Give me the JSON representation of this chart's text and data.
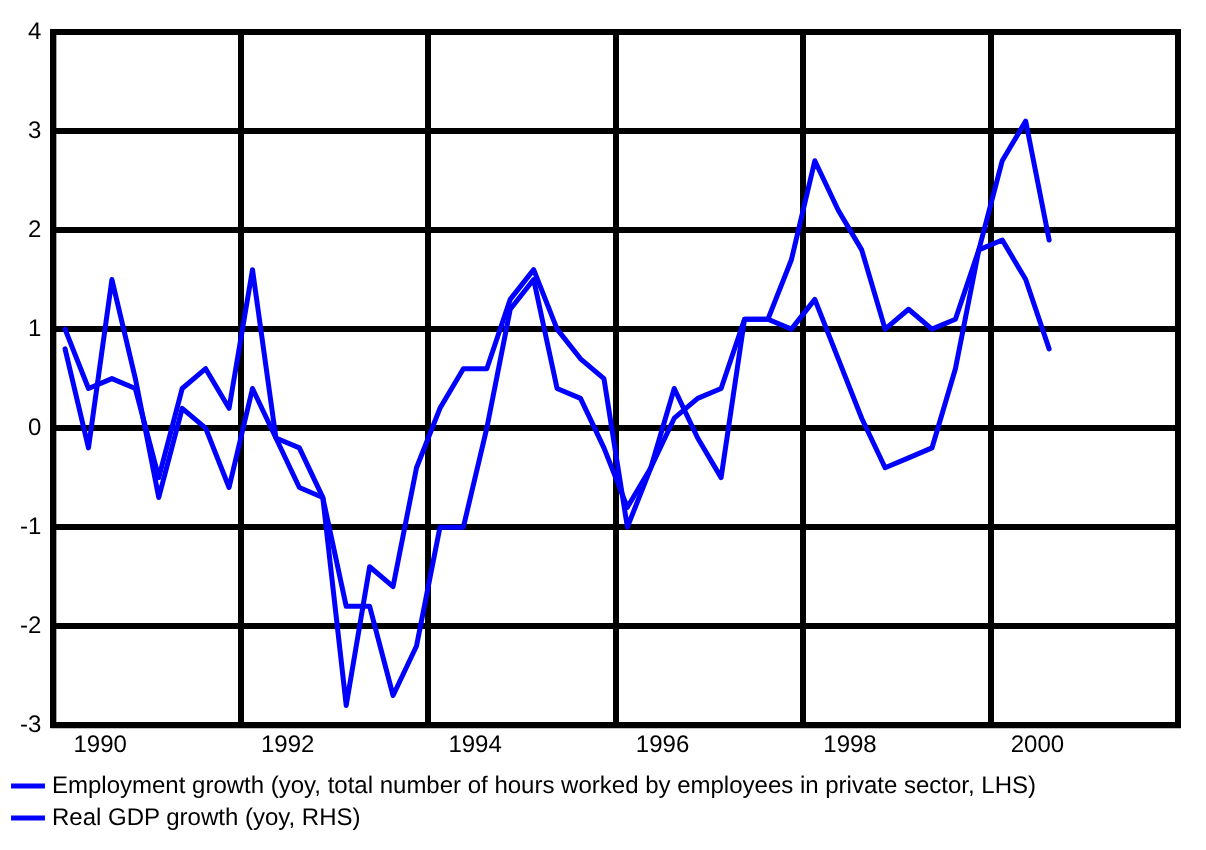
{
  "chart_data": {
    "type": "line",
    "x": [
      1989.625,
      1989.875,
      1990.125,
      1990.375,
      1990.625,
      1990.875,
      1991.125,
      1991.375,
      1991.625,
      1991.875,
      1992.125,
      1992.375,
      1992.625,
      1992.875,
      1993.125,
      1993.375,
      1993.625,
      1993.875,
      1994.125,
      1994.375,
      1994.625,
      1994.875,
      1995.125,
      1995.375,
      1995.625,
      1995.875,
      1996.125,
      1996.375,
      1996.625,
      1996.875,
      1997.125,
      1997.375,
      1997.625,
      1997.875,
      1998.125,
      1998.375,
      1998.625,
      1998.875,
      1999.125,
      1999.375,
      1999.625,
      1999.875,
      2000.125
    ],
    "series": [
      {
        "name": "Employment growth (yoy, total number of hours worked by employees in private sector, LHS)",
        "color": "#0000ff",
        "values": [
          0.8,
          -0.2,
          1.5,
          0.5,
          -0.7,
          0.2,
          0.0,
          -0.6,
          0.4,
          -0.1,
          -0.6,
          -0.7,
          -1.8,
          -1.8,
          -2.7,
          -2.2,
          -1.0,
          -1.0,
          0.0,
          1.2,
          1.5,
          0.4,
          0.3,
          -0.2,
          -0.8,
          -0.4,
          0.4,
          -0.1,
          -0.5,
          1.1,
          1.1,
          1.0,
          1.3,
          0.7,
          0.1,
          -0.4,
          -0.3,
          -0.2,
          0.6,
          1.8,
          2.7,
          3.1,
          1.9
        ]
      },
      {
        "name": "Real GDP growth (yoy, RHS)",
        "color": "#0000ff",
        "values": [
          1.0,
          0.4,
          0.5,
          0.4,
          -0.5,
          0.4,
          0.6,
          0.2,
          1.6,
          -0.1,
          -0.2,
          -0.7,
          -2.8,
          -1.4,
          -1.6,
          -0.4,
          0.2,
          0.6,
          0.6,
          1.3,
          1.6,
          1.0,
          0.7,
          0.5,
          -1.0,
          -0.4,
          0.1,
          0.3,
          0.4,
          1.1,
          1.1,
          1.7,
          2.7,
          2.2,
          1.8,
          1.0,
          1.2,
          1.0,
          1.1,
          1.8,
          1.9,
          1.5,
          0.8
        ]
      }
    ],
    "xlim": [
      1989.5,
      2001.5
    ],
    "xticks": [
      1990,
      {
        "value": 1991.5,
        "label": null
      },
      1992,
      {
        "value": 1993.5,
        "label": null
      },
      1994,
      {
        "value": 1995.5,
        "label": null
      },
      1996,
      {
        "value": 1997.5,
        "label": null
      },
      1998,
      {
        "value": 1999.5,
        "label": null
      },
      2000
    ],
    "ylim": [
      -3,
      4
    ],
    "yticks": [
      -3,
      -2,
      -1,
      0,
      1,
      2,
      3,
      4
    ],
    "grid": true,
    "legend": "bottom left",
    "marker": "none",
    "line_style": "solid"
  }
}
